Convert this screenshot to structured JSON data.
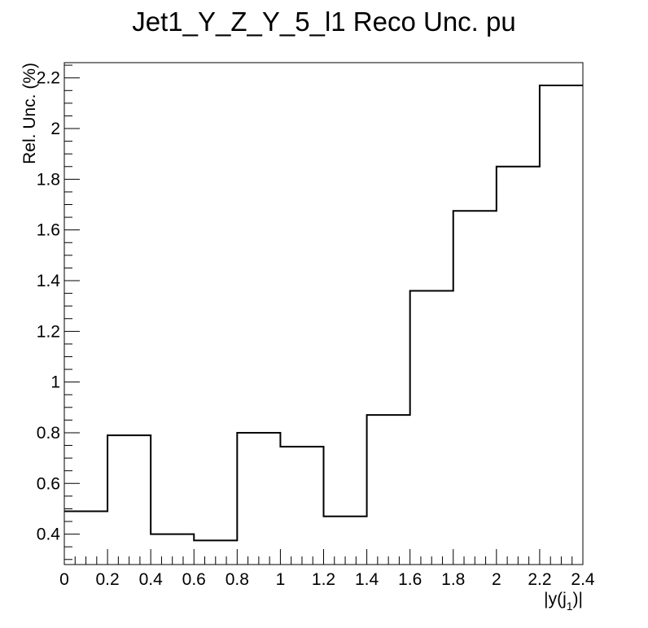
{
  "chart_data": {
    "type": "line",
    "style": "step-histogram",
    "title": "Jet1_Y_Z_Y_5_l1 Reco Unc. pu",
    "xlabel": {
      "main": "|y(j",
      "sub": "1",
      "close": ")|"
    },
    "ylabel": "Rel. Unc. (%)",
    "xlim": [
      0,
      2.4
    ],
    "ylim": [
      0.28,
      2.26
    ],
    "x_ticks": [
      0,
      0.2,
      0.4,
      0.6,
      0.8,
      1,
      1.2,
      1.4,
      1.6,
      1.8,
      2,
      2.2,
      2.4
    ],
    "x_tick_labels": [
      "0",
      "0.2",
      "0.4",
      "0.6",
      "0.8",
      "1",
      "1.2",
      "1.4",
      "1.6",
      "1.8",
      "2",
      "2.2",
      "2.4"
    ],
    "y_ticks": [
      0.4,
      0.6,
      0.8,
      1,
      1.2,
      1.4,
      1.6,
      1.8,
      2,
      2.2
    ],
    "y_tick_labels": [
      "0.4",
      "0.6",
      "0.8",
      "1",
      "1.2",
      "1.4",
      "1.6",
      "1.8",
      "2",
      "2.2"
    ],
    "bin_edges": [
      0,
      0.2,
      0.4,
      0.6,
      0.8,
      1.0,
      1.2,
      1.4,
      1.6,
      1.8,
      2.0,
      2.2,
      2.4
    ],
    "values": [
      0.49,
      0.79,
      0.4,
      0.375,
      0.8,
      0.745,
      0.47,
      0.87,
      1.36,
      1.675,
      1.85,
      2.17
    ],
    "line_color": "#000000",
    "grid": false,
    "legend": "none"
  }
}
